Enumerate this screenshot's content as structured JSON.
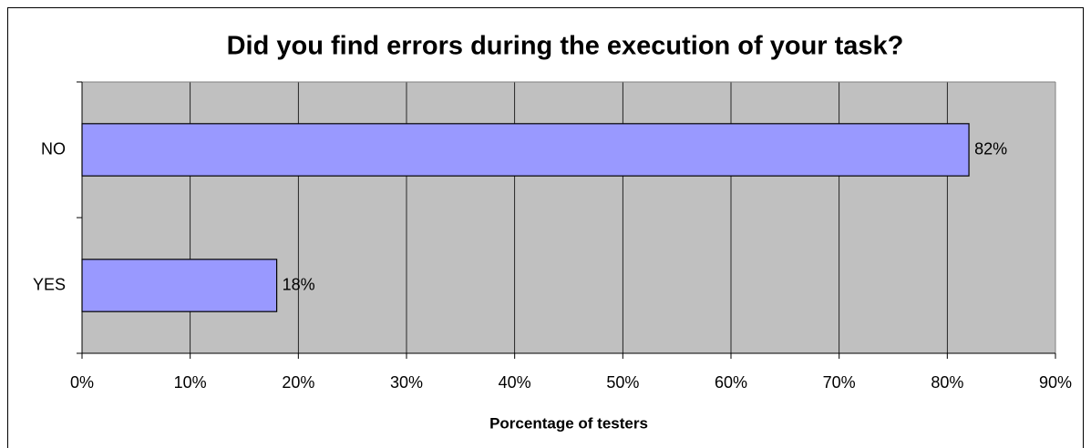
{
  "chart_data": {
    "type": "bar",
    "orientation": "horizontal",
    "title": "Did you find errors during the execution of your task?",
    "x_label": "Porcentage of testers",
    "categories": [
      "NO",
      "YES"
    ],
    "values": [
      82,
      18
    ],
    "value_labels": [
      "82%",
      "18%"
    ],
    "color": "#9999ff",
    "xlim": [
      0,
      90
    ],
    "xticks": [
      {
        "value": 0,
        "label": "0%"
      },
      {
        "value": 10,
        "label": "10%"
      },
      {
        "value": 20,
        "label": "20%"
      },
      {
        "value": 30,
        "label": "30%"
      },
      {
        "value": 40,
        "label": "40%"
      },
      {
        "value": 50,
        "label": "50%"
      },
      {
        "value": 60,
        "label": "60%"
      },
      {
        "value": 70,
        "label": "70%"
      },
      {
        "value": 80,
        "label": "80%"
      },
      {
        "value": 90,
        "label": "90%"
      }
    ],
    "grid": true
  }
}
